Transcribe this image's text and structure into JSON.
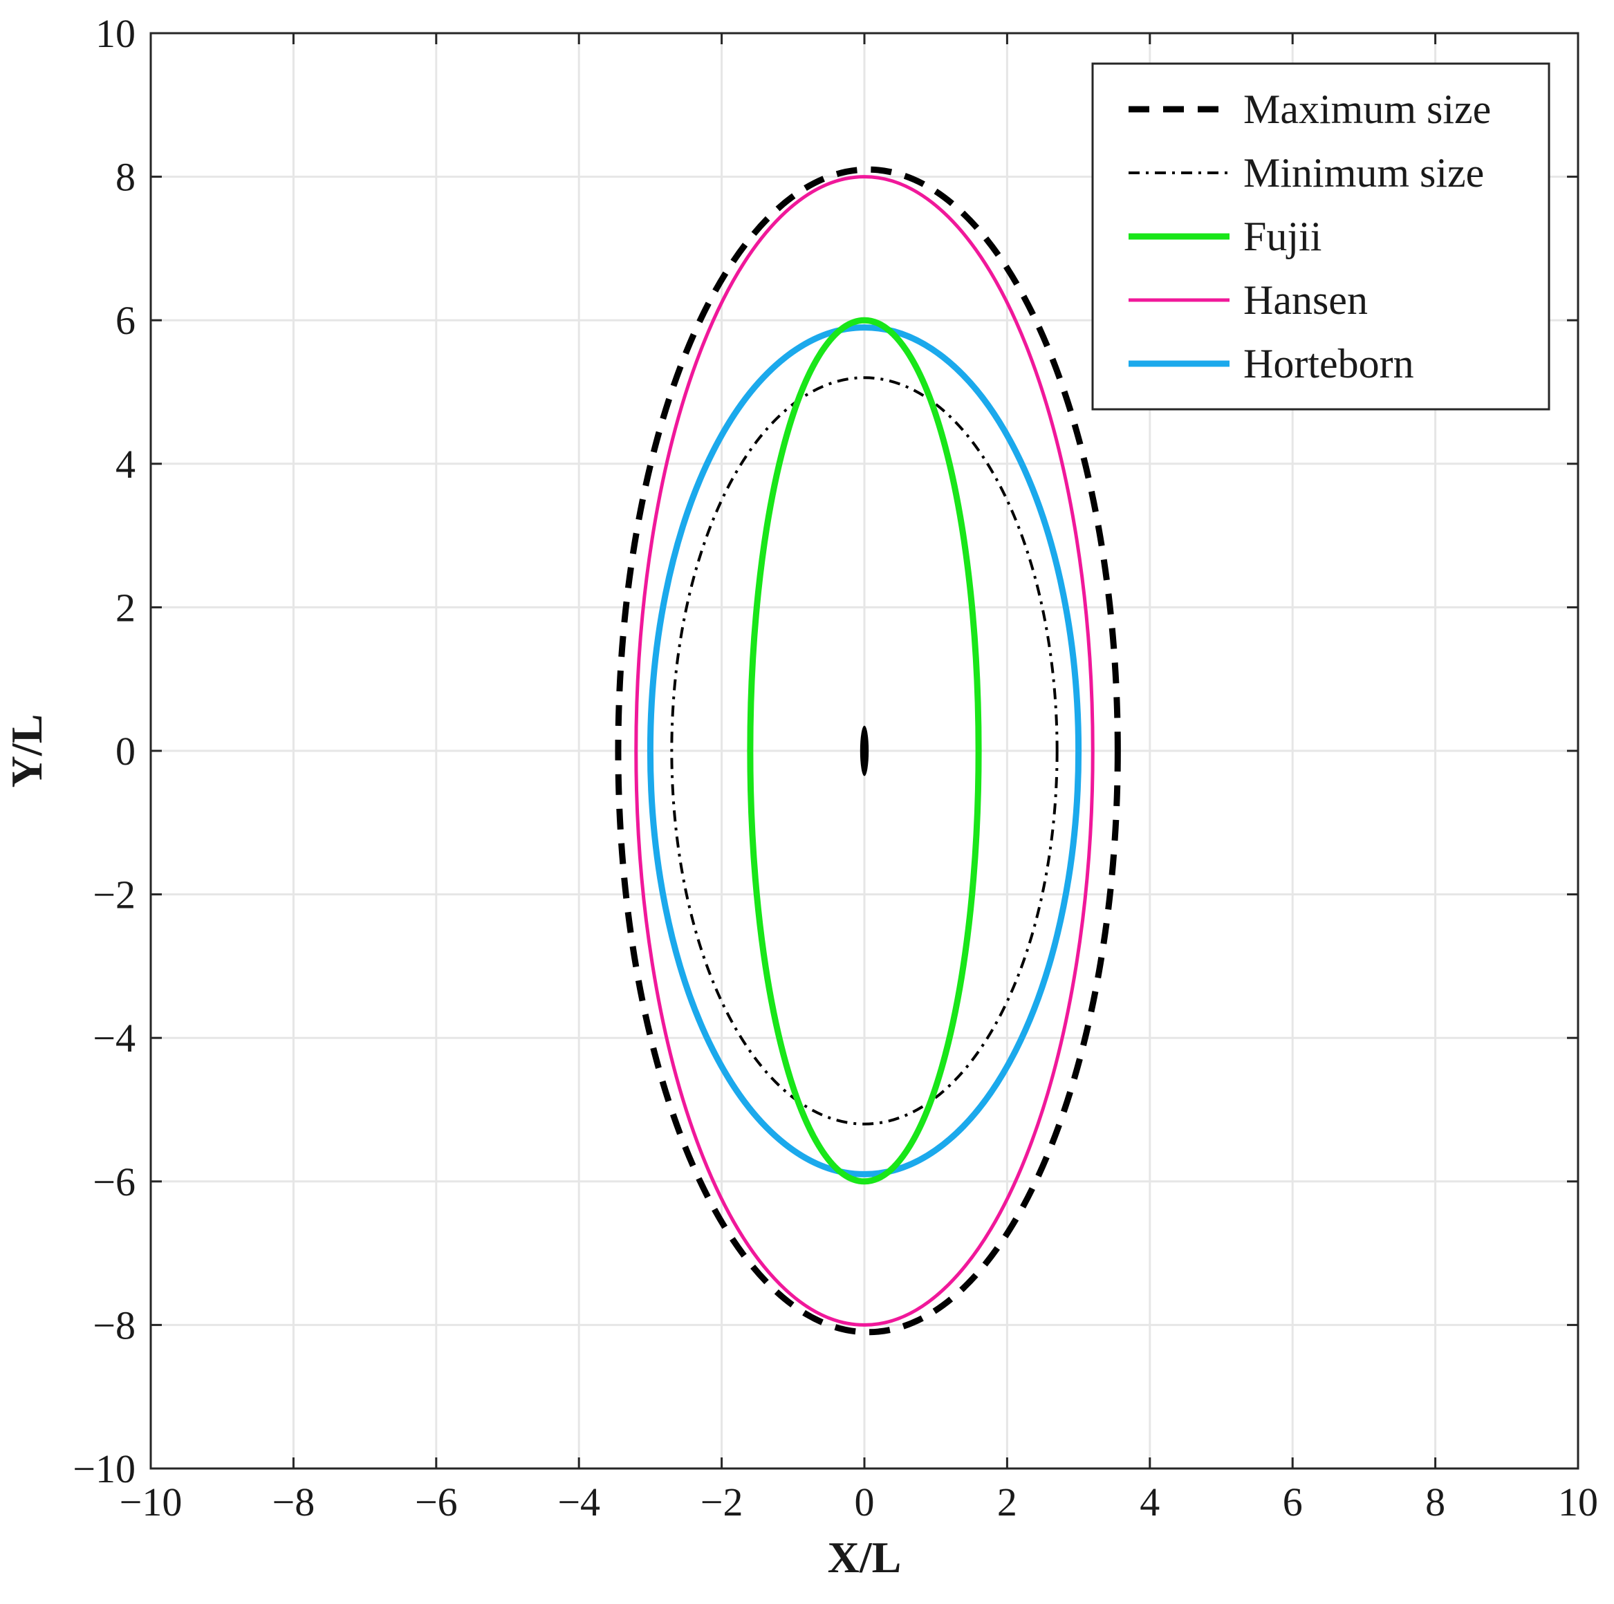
{
  "chart_data": {
    "type": "line",
    "title": "",
    "xlabel": "X/L",
    "ylabel": "Y/L",
    "xlim": [
      -10,
      10
    ],
    "ylim": [
      -10,
      10
    ],
    "xticks": [
      -10,
      -8,
      -6,
      -4,
      -2,
      0,
      2,
      4,
      6,
      8,
      10
    ],
    "yticks": [
      -10,
      -8,
      -6,
      -4,
      -2,
      0,
      2,
      4,
      6,
      8,
      10
    ],
    "xtick_labels": [
      "−10",
      "−8",
      "−6",
      "−4",
      "−2",
      "0",
      "2",
      "4",
      "6",
      "8",
      "10"
    ],
    "ytick_labels": [
      "−10",
      "−8",
      "−6",
      "−4",
      "−2",
      "0",
      "2",
      "4",
      "6",
      "8",
      "10"
    ],
    "grid": true,
    "legend_position": "top-right",
    "ship": {
      "center": [
        0,
        0
      ],
      "half_width": 0.06,
      "half_length": 0.35,
      "color": "#000000"
    },
    "series": [
      {
        "name": "Maximum size",
        "shape": "ellipse",
        "center": [
          0.05,
          0
        ],
        "semi_x": 3.5,
        "semi_y": 8.1,
        "color": "#000000",
        "style": "dashed"
      },
      {
        "name": "Minimum size",
        "shape": "ellipse",
        "center": [
          0,
          0
        ],
        "semi_x": 2.7,
        "semi_y": 5.2,
        "color": "#000000",
        "style": "dashdot"
      },
      {
        "name": "Fujii",
        "shape": "ellipse",
        "center": [
          0,
          0
        ],
        "semi_x": 1.6,
        "semi_y": 6.0,
        "color": "#19e619",
        "style": "solid"
      },
      {
        "name": "Hansen",
        "shape": "ellipse",
        "center": [
          0,
          0
        ],
        "semi_x": 3.2,
        "semi_y": 8.0,
        "color": "#f0189a",
        "style": "solid"
      },
      {
        "name": "Horteborn",
        "shape": "ellipse",
        "center": [
          0,
          0
        ],
        "semi_x": 3.0,
        "semi_y": 5.9,
        "color": "#1ba9ec",
        "style": "solid"
      }
    ]
  }
}
